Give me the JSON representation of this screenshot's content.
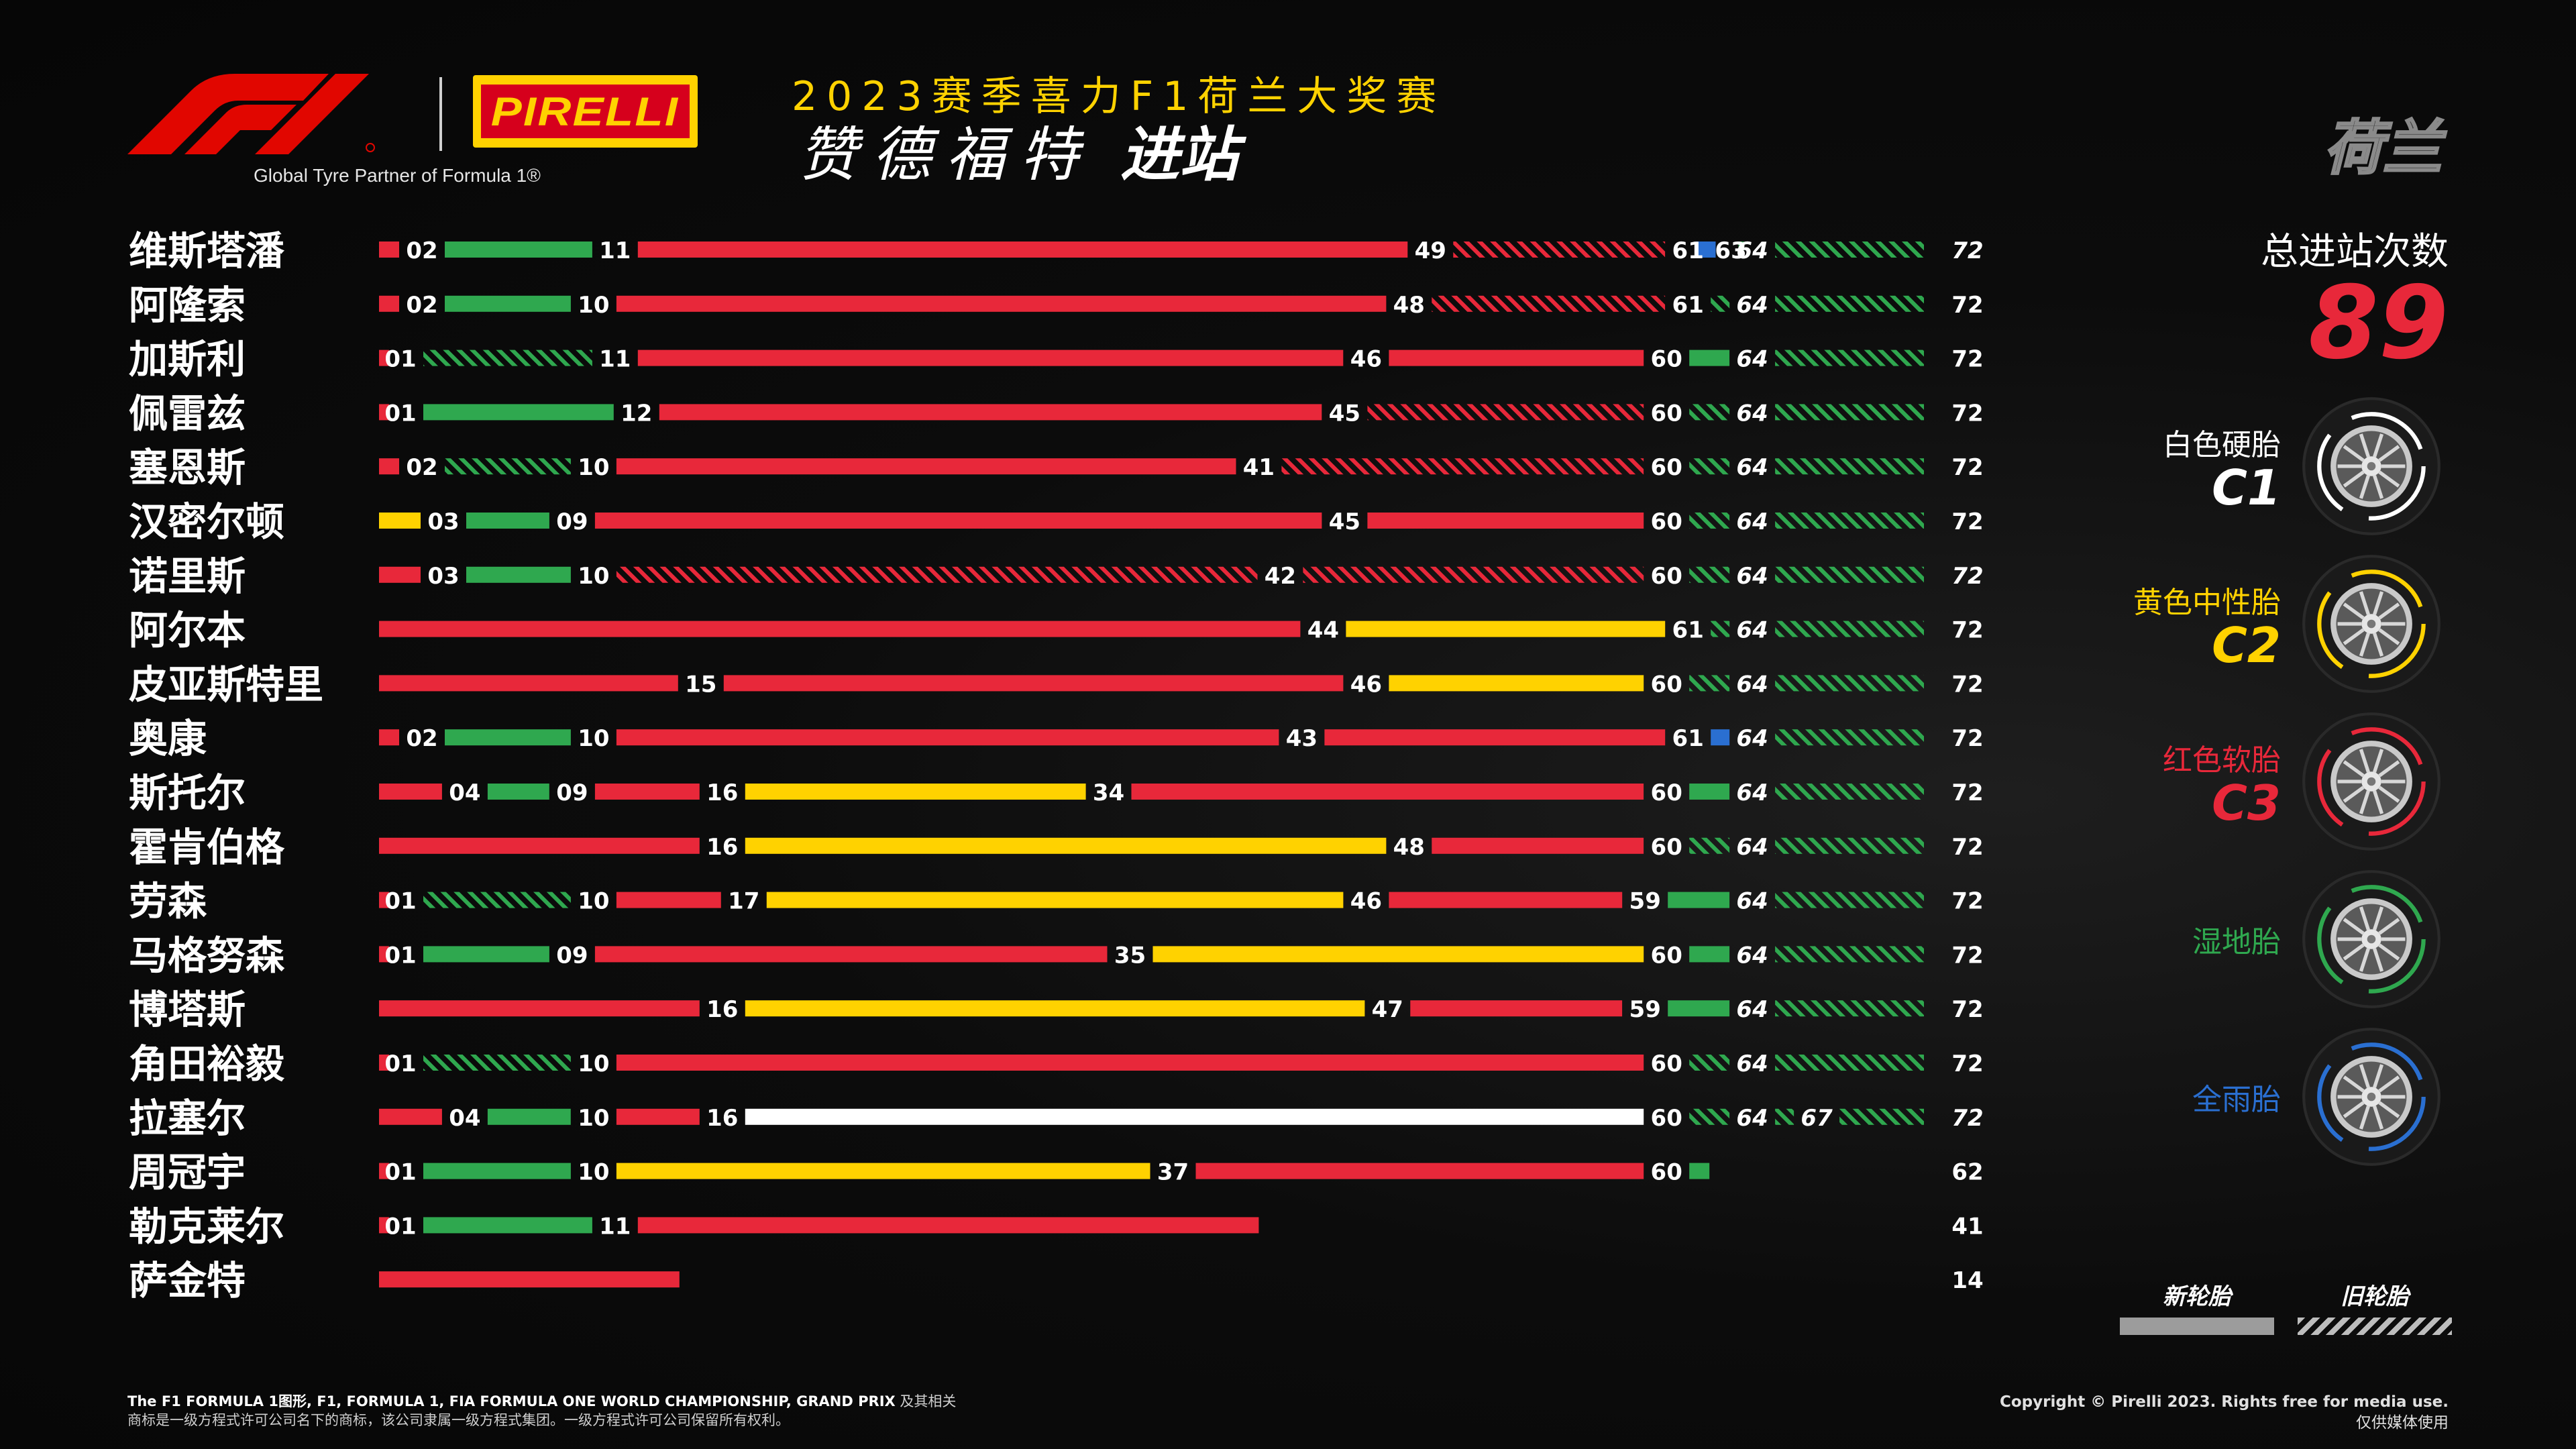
{
  "header": {
    "tagline": "Global Tyre Partner of Formula 1®",
    "pirelli_wordmark": "PIRELLI",
    "season_title": "2023赛季喜力F1荷兰大奖赛",
    "driver_name": "赞德福特",
    "pit_label": "进站",
    "country": "荷兰"
  },
  "total": {
    "label": "总进站次数",
    "value": "89"
  },
  "compounds": [
    {
      "name": "白色硬胎",
      "code": "C1",
      "color": "#ffffff",
      "icon": "hard-tyre-icon"
    },
    {
      "name": "黄色中性胎",
      "code": "C2",
      "color": "#ffd200",
      "icon": "medium-tyre-icon"
    },
    {
      "name": "红色软胎",
      "code": "C3",
      "color": "#e8283a",
      "icon": "soft-tyre-icon"
    },
    {
      "name": "湿地胎",
      "code": "",
      "color": "#2fa84f",
      "icon": "intermediate-tyre-icon"
    },
    {
      "name": "全雨胎",
      "code": "",
      "color": "#2a6fd1",
      "icon": "wet-tyre-icon"
    }
  ],
  "condition_legend": {
    "new": "新轮胎",
    "used": "旧轮胎"
  },
  "colors": {
    "S": "#e8283a",
    "M": "#ffd200",
    "H": "#ffffff",
    "I": "#2fa84f",
    "W": "#2a6fd1"
  },
  "chart_data": {
    "type": "bar",
    "title": "",
    "x_range": [
      0,
      72
    ],
    "drivers": [
      {
        "name": "维斯塔潘",
        "finish": 72,
        "stints": [
          {
            "c": "S",
            "s": 0,
            "e": 2,
            "used": false
          },
          {
            "c": "I",
            "s": 2,
            "e": 11,
            "used": false
          },
          {
            "c": "S",
            "s": 11,
            "e": 49,
            "used": false
          },
          {
            "c": "S",
            "s": 49,
            "e": 61,
            "used": true
          },
          {
            "c": "W",
            "s": 61,
            "e": 63,
            "used": false
          },
          {
            "c": "I",
            "s": 63,
            "e": 64,
            "used": false
          },
          {
            "c": "I",
            "s": 64,
            "e": 72,
            "used": true
          }
        ]
      },
      {
        "name": "阿隆索",
        "finish": 72,
        "stints": [
          {
            "c": "S",
            "s": 0,
            "e": 2,
            "used": false
          },
          {
            "c": "I",
            "s": 2,
            "e": 10,
            "used": false
          },
          {
            "c": "S",
            "s": 10,
            "e": 48,
            "used": false
          },
          {
            "c": "S",
            "s": 48,
            "e": 61,
            "used": true
          },
          {
            "c": "I",
            "s": 61,
            "e": 64,
            "used": true
          },
          {
            "c": "I",
            "s": 64,
            "e": 72,
            "used": true
          }
        ]
      },
      {
        "name": "加斯利",
        "finish": 72,
        "stints": [
          {
            "c": "S",
            "s": 0,
            "e": 1,
            "used": false
          },
          {
            "c": "I",
            "s": 1,
            "e": 11,
            "used": true
          },
          {
            "c": "S",
            "s": 11,
            "e": 46,
            "used": false
          },
          {
            "c": "S",
            "s": 46,
            "e": 60,
            "used": false
          },
          {
            "c": "I",
            "s": 60,
            "e": 64,
            "used": false
          },
          {
            "c": "I",
            "s": 64,
            "e": 72,
            "used": true
          }
        ]
      },
      {
        "name": "佩雷兹",
        "finish": 72,
        "stints": [
          {
            "c": "S",
            "s": 0,
            "e": 1,
            "used": false
          },
          {
            "c": "I",
            "s": 1,
            "e": 12,
            "used": false
          },
          {
            "c": "S",
            "s": 12,
            "e": 45,
            "used": false
          },
          {
            "c": "S",
            "s": 45,
            "e": 60,
            "used": true
          },
          {
            "c": "I",
            "s": 60,
            "e": 64,
            "used": true
          },
          {
            "c": "I",
            "s": 64,
            "e": 72,
            "used": true
          }
        ]
      },
      {
        "name": "塞恩斯",
        "finish": 72,
        "stints": [
          {
            "c": "S",
            "s": 0,
            "e": 2,
            "used": false
          },
          {
            "c": "I",
            "s": 2,
            "e": 10,
            "used": true
          },
          {
            "c": "S",
            "s": 10,
            "e": 41,
            "used": false
          },
          {
            "c": "S",
            "s": 41,
            "e": 60,
            "used": true
          },
          {
            "c": "I",
            "s": 60,
            "e": 64,
            "used": true
          },
          {
            "c": "I",
            "s": 64,
            "e": 72,
            "used": true
          }
        ]
      },
      {
        "name": "汉密尔顿",
        "finish": 72,
        "stints": [
          {
            "c": "M",
            "s": 0,
            "e": 3,
            "used": false
          },
          {
            "c": "I",
            "s": 3,
            "e": 9,
            "used": false
          },
          {
            "c": "S",
            "s": 9,
            "e": 45,
            "used": false
          },
          {
            "c": "S",
            "s": 45,
            "e": 60,
            "used": false
          },
          {
            "c": "I",
            "s": 60,
            "e": 64,
            "used": true
          },
          {
            "c": "I",
            "s": 64,
            "e": 72,
            "used": true
          }
        ]
      },
      {
        "name": "诺里斯",
        "finish": 72,
        "stints": [
          {
            "c": "S",
            "s": 0,
            "e": 3,
            "used": false
          },
          {
            "c": "I",
            "s": 3,
            "e": 10,
            "used": false
          },
          {
            "c": "S",
            "s": 10,
            "e": 42,
            "used": true
          },
          {
            "c": "S",
            "s": 42,
            "e": 60,
            "used": true
          },
          {
            "c": "I",
            "s": 60,
            "e": 64,
            "used": true
          },
          {
            "c": "I",
            "s": 64,
            "e": 72,
            "used": true
          }
        ]
      },
      {
        "name": "阿尔本",
        "finish": 72,
        "stints": [
          {
            "c": "S",
            "s": 0,
            "e": 44,
            "used": false
          },
          {
            "c": "M",
            "s": 44,
            "e": 61,
            "used": false
          },
          {
            "c": "I",
            "s": 61,
            "e": 64,
            "used": true
          },
          {
            "c": "I",
            "s": 64,
            "e": 72,
            "used": true
          }
        ]
      },
      {
        "name": "皮亚斯特里",
        "finish": 72,
        "stints": [
          {
            "c": "S",
            "s": 0,
            "e": 15,
            "used": false
          },
          {
            "c": "S",
            "s": 15,
            "e": 46,
            "used": false
          },
          {
            "c": "M",
            "s": 46,
            "e": 60,
            "used": false
          },
          {
            "c": "I",
            "s": 60,
            "e": 64,
            "used": true
          },
          {
            "c": "I",
            "s": 64,
            "e": 72,
            "used": true
          }
        ]
      },
      {
        "name": "奥康",
        "finish": 72,
        "stints": [
          {
            "c": "S",
            "s": 0,
            "e": 2,
            "used": false
          },
          {
            "c": "I",
            "s": 2,
            "e": 10,
            "used": false
          },
          {
            "c": "S",
            "s": 10,
            "e": 43,
            "used": false
          },
          {
            "c": "S",
            "s": 43,
            "e": 61,
            "used": false
          },
          {
            "c": "W",
            "s": 61,
            "e": 64,
            "used": false
          },
          {
            "c": "I",
            "s": 64,
            "e": 72,
            "used": true
          }
        ]
      },
      {
        "name": "斯托尔",
        "finish": 72,
        "stints": [
          {
            "c": "S",
            "s": 0,
            "e": 4,
            "used": false
          },
          {
            "c": "I",
            "s": 4,
            "e": 9,
            "used": false
          },
          {
            "c": "S",
            "s": 9,
            "e": 16,
            "used": false
          },
          {
            "c": "M",
            "s": 16,
            "e": 34,
            "used": false
          },
          {
            "c": "S",
            "s": 34,
            "e": 60,
            "used": false
          },
          {
            "c": "I",
            "s": 60,
            "e": 64,
            "used": false
          },
          {
            "c": "I",
            "s": 64,
            "e": 72,
            "used": true
          }
        ]
      },
      {
        "name": "霍肯伯格",
        "finish": 72,
        "stints": [
          {
            "c": "S",
            "s": 0,
            "e": 16,
            "used": false
          },
          {
            "c": "M",
            "s": 16,
            "e": 48,
            "used": false
          },
          {
            "c": "S",
            "s": 48,
            "e": 60,
            "used": false
          },
          {
            "c": "I",
            "s": 60,
            "e": 64,
            "used": true
          },
          {
            "c": "I",
            "s": 64,
            "e": 72,
            "used": true
          }
        ]
      },
      {
        "name": "劳森",
        "finish": 72,
        "stints": [
          {
            "c": "S",
            "s": 0,
            "e": 1,
            "used": false
          },
          {
            "c": "I",
            "s": 1,
            "e": 10,
            "used": true
          },
          {
            "c": "S",
            "s": 10,
            "e": 17,
            "used": false
          },
          {
            "c": "M",
            "s": 17,
            "e": 46,
            "used": false
          },
          {
            "c": "S",
            "s": 46,
            "e": 59,
            "used": false
          },
          {
            "c": "I",
            "s": 59,
            "e": 64,
            "used": false
          },
          {
            "c": "I",
            "s": 64,
            "e": 72,
            "used": true
          }
        ]
      },
      {
        "name": "马格努森",
        "finish": 72,
        "stints": [
          {
            "c": "S",
            "s": 0,
            "e": 1,
            "used": false
          },
          {
            "c": "I",
            "s": 1,
            "e": 9,
            "used": false
          },
          {
            "c": "S",
            "s": 9,
            "e": 35,
            "used": false
          },
          {
            "c": "M",
            "s": 35,
            "e": 60,
            "used": false
          },
          {
            "c": "I",
            "s": 60,
            "e": 64,
            "used": false
          },
          {
            "c": "I",
            "s": 64,
            "e": 72,
            "used": true
          }
        ]
      },
      {
        "name": "博塔斯",
        "finish": 72,
        "stints": [
          {
            "c": "S",
            "s": 0,
            "e": 16,
            "used": false
          },
          {
            "c": "M",
            "s": 16,
            "e": 47,
            "used": false
          },
          {
            "c": "S",
            "s": 47,
            "e": 59,
            "used": false
          },
          {
            "c": "I",
            "s": 59,
            "e": 64,
            "used": false
          },
          {
            "c": "I",
            "s": 64,
            "e": 72,
            "used": true
          }
        ]
      },
      {
        "name": "角田裕毅",
        "finish": 72,
        "stints": [
          {
            "c": "S",
            "s": 0,
            "e": 1,
            "used": false
          },
          {
            "c": "I",
            "s": 1,
            "e": 10,
            "used": true
          },
          {
            "c": "S",
            "s": 10,
            "e": 60,
            "used": false
          },
          {
            "c": "I",
            "s": 60,
            "e": 64,
            "used": true
          },
          {
            "c": "I",
            "s": 64,
            "e": 72,
            "used": true
          }
        ]
      },
      {
        "name": "拉塞尔",
        "finish": 72,
        "stints": [
          {
            "c": "S",
            "s": 0,
            "e": 4,
            "used": false
          },
          {
            "c": "I",
            "s": 4,
            "e": 10,
            "used": false
          },
          {
            "c": "S",
            "s": 10,
            "e": 16,
            "used": false
          },
          {
            "c": "H",
            "s": 16,
            "e": 60,
            "used": false
          },
          {
            "c": "I",
            "s": 60,
            "e": 64,
            "used": true
          },
          {
            "c": "I",
            "s": 64,
            "e": 67,
            "used": true
          },
          {
            "c": "I",
            "s": 67,
            "e": 72,
            "used": true
          }
        ]
      },
      {
        "name": "周冠宇",
        "finish": 62,
        "stints": [
          {
            "c": "S",
            "s": 0,
            "e": 1,
            "used": false
          },
          {
            "c": "I",
            "s": 1,
            "e": 10,
            "used": false
          },
          {
            "c": "M",
            "s": 10,
            "e": 37,
            "used": false
          },
          {
            "c": "S",
            "s": 37,
            "e": 60,
            "used": false
          },
          {
            "c": "I",
            "s": 60,
            "e": 62,
            "used": false
          }
        ]
      },
      {
        "name": "勒克莱尔",
        "finish": 41,
        "stints": [
          {
            "c": "S",
            "s": 0,
            "e": 1,
            "used": false
          },
          {
            "c": "I",
            "s": 1,
            "e": 11,
            "used": false
          },
          {
            "c": "S",
            "s": 11,
            "e": 41,
            "used": false
          }
        ]
      },
      {
        "name": "萨金特",
        "finish": 14,
        "stints": [
          {
            "c": "S",
            "s": 0,
            "e": 14,
            "used": false
          }
        ]
      }
    ]
  },
  "footer": {
    "legal_line1_bold": "The F1 FORMULA 1图形, F1, FORMULA 1, FIA FORMULA ONE WORLD CHAMPIONSHIP, GRAND PRIX",
    "legal_line1_rest": " 及其相关",
    "legal_line2": "商标是一级方程式许可公司名下的商标，该公司隶属一级方程式集团。一级方程式许可公司保留所有权利。",
    "copyright": "Copyright © Pirelli 2023. Rights free for media use.",
    "media_use": "仅供媒体使用"
  }
}
